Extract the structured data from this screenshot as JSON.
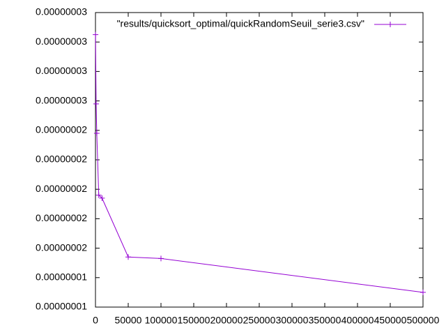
{
  "chart_data": {
    "type": "line",
    "series": [
      {
        "name": "\"results/quicksort_optimal/quickRandomSeuil_serie3.csv\"",
        "color": "#9400d3",
        "x": [
          100,
          1000,
          2000,
          5000,
          10000,
          50000,
          100000,
          500000
        ],
        "values": [
          3.05e-08,
          2.58e-08,
          2.38e-08,
          1.96e-08,
          1.94e-08,
          1.54e-08,
          1.53e-08,
          1.3e-08
        ]
      }
    ],
    "xlim": [
      0,
      500000
    ],
    "xticks": [
      0,
      50000,
      100000,
      150000,
      200000,
      250000,
      300000,
      350000,
      400000,
      450000,
      500000
    ],
    "ylim": [
      1.2e-08,
      3.2e-08
    ],
    "yticks": [
      {
        "value": 1.2e-08,
        "label": "0.00000001"
      },
      {
        "value": 1.4e-08,
        "label": "0.00000001"
      },
      {
        "value": 1.6e-08,
        "label": "0.00000002"
      },
      {
        "value": 1.8e-08,
        "label": "0.00000002"
      },
      {
        "value": 2e-08,
        "label": "0.00000002"
      },
      {
        "value": 2.2e-08,
        "label": "0.00000002"
      },
      {
        "value": 2.4e-08,
        "label": "0.00000002"
      },
      {
        "value": 2.6e-08,
        "label": "0.00000003"
      },
      {
        "value": 2.8e-08,
        "label": "0.00000003"
      },
      {
        "value": 3e-08,
        "label": "0.00000003"
      },
      {
        "value": 3.2e-08,
        "label": "0.00000003"
      }
    ],
    "legend": "top-right"
  }
}
